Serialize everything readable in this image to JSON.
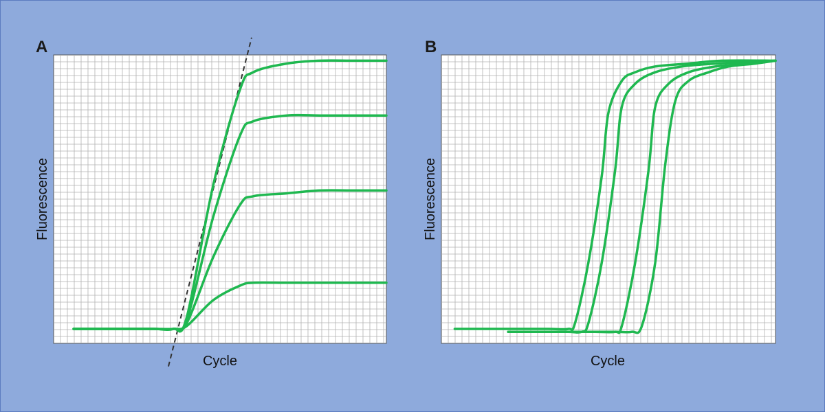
{
  "chart_data": [
    {
      "type": "line",
      "panel": "A",
      "title": "",
      "xlabel": "Cycle",
      "ylabel": "Fluorescence",
      "grid": true,
      "xlim": [
        0,
        100
      ],
      "ylim": [
        0,
        100
      ],
      "series": [
        {
          "x": [
            6,
            20,
            30,
            36,
            40,
            48,
            56,
            60,
            70,
            80,
            90,
            100
          ],
          "y": [
            5,
            5,
            5,
            5,
            6,
            15,
            20,
            21,
            21,
            21,
            21,
            21
          ]
        },
        {
          "x": [
            6,
            20,
            30,
            36,
            40,
            48,
            56,
            60,
            70,
            80,
            90,
            100
          ],
          "y": [
            5,
            5,
            5,
            5,
            7,
            30,
            48,
            51,
            52,
            53,
            53,
            53
          ]
        },
        {
          "x": [
            6,
            20,
            30,
            36,
            40,
            48,
            56,
            60,
            70,
            80,
            90,
            100
          ],
          "y": [
            5,
            5,
            5,
            5,
            8,
            44,
            72,
            77,
            79,
            79,
            79,
            79
          ]
        },
        {
          "x": [
            6,
            20,
            30,
            36,
            40,
            48,
            56,
            60,
            70,
            80,
            90,
            100
          ],
          "y": [
            5,
            5,
            5,
            5,
            9,
            55,
            88,
            94,
            97,
            98,
            98,
            98
          ]
        }
      ],
      "annotations": [
        {
          "type": "dashed-line",
          "x": [
            34.5,
            59.5
          ],
          "y": [
            -8,
            106
          ]
        }
      ]
    },
    {
      "type": "line",
      "panel": "B",
      "title": "",
      "xlabel": "Cycle",
      "ylabel": "Fluorescence",
      "grid": true,
      "xlim": [
        0,
        100
      ],
      "ylim": [
        0,
        100
      ],
      "series": [
        {
          "x": [
            4,
            20,
            32,
            38,
            40,
            44,
            48,
            50,
            54,
            58,
            64,
            74,
            84,
            100
          ],
          "y": [
            5,
            5,
            5,
            5,
            7,
            28,
            58,
            80,
            91,
            94,
            96,
            97,
            98,
            98
          ]
        },
        {
          "x": [
            20,
            32,
            38,
            42,
            44,
            48,
            52,
            54,
            58,
            64,
            72,
            82,
            100
          ],
          "y": [
            4,
            4,
            4,
            4,
            7,
            28,
            60,
            82,
            90,
            94,
            96,
            97,
            98
          ]
        },
        {
          "x": [
            20,
            40,
            46,
            52,
            54,
            58,
            62,
            64,
            68,
            74,
            82,
            92,
            100
          ],
          "y": [
            4,
            4,
            4,
            4,
            6,
            28,
            60,
            82,
            90,
            94,
            96,
            97,
            98
          ]
        },
        {
          "x": [
            26,
            40,
            52,
            57,
            60,
            64,
            67,
            70,
            74,
            80,
            86,
            94,
            100
          ],
          "y": [
            4,
            4,
            4,
            4,
            6,
            28,
            62,
            84,
            91,
            94,
            96,
            97,
            98
          ]
        }
      ]
    }
  ],
  "panels": [
    {
      "letter": "A",
      "xlabel": "Cycle",
      "ylabel": "Fluorescence"
    },
    {
      "letter": "B",
      "xlabel": "Cycle",
      "ylabel": "Fluorescence"
    }
  ],
  "colors": {
    "background": "#8eaadc",
    "plot_bg": "#ffffff",
    "grid": "#b0b0b0",
    "series": "#1fb850",
    "dashed": "#333333"
  }
}
